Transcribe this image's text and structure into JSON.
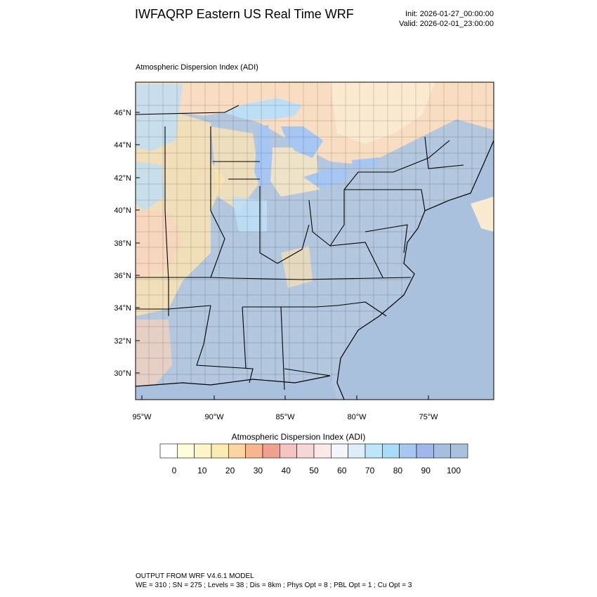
{
  "header": {
    "title": "IWFAQRP Eastern US Real Time WRF",
    "init": "Init: 2026-01-27_00:00:00",
    "valid": "Valid: 2026-02-01_23:00:00"
  },
  "panel": {
    "title": "Atmospheric Dispersion Index   (ADI)"
  },
  "map": {
    "lat_labels": [
      "46°N",
      "44°N",
      "42°N",
      "40°N",
      "38°N",
      "36°N",
      "34°N",
      "32°N",
      "30°N"
    ],
    "lon_labels": [
      "95°W",
      "90°W",
      "85°W",
      "80°W",
      "75°W"
    ],
    "colors": {
      "ocean": "#a9c1dc",
      "land_high": "#b3c7de",
      "land_mid": "#bcdff6",
      "land_low": "#fbe3b4",
      "land_peach": "#f7d3bd",
      "boundary": "#000000"
    }
  },
  "colorbar": {
    "title": "Atmospheric Dispersion Index  (ADI)",
    "tick_labels": [
      "0",
      "10",
      "20",
      "30",
      "40",
      "50",
      "60",
      "70",
      "80",
      "90",
      "100"
    ],
    "colors": [
      "#ffffff",
      "#ffffdc",
      "#fff5c6",
      "#fdebb2",
      "#fcd6a0",
      "#f8b68e",
      "#f2a08e",
      "#f4c3c2",
      "#f7d6d6",
      "#fbe8e8",
      "#f4f4fc",
      "#dceefa",
      "#bee6f9",
      "#a8dcf8",
      "#a6c7f3",
      "#a0b7ec",
      "#a6bfe0",
      "#a9c1dc"
    ]
  },
  "footer": {
    "line1": "OUTPUT FROM WRF V4.6.1 MODEL",
    "line2": "WE = 310 ; SN = 275 ; Levels = 38 ; Dis = 8km ; Phys Opt = 8 ; PBL Opt = 1 ; Cu Opt = 3"
  }
}
